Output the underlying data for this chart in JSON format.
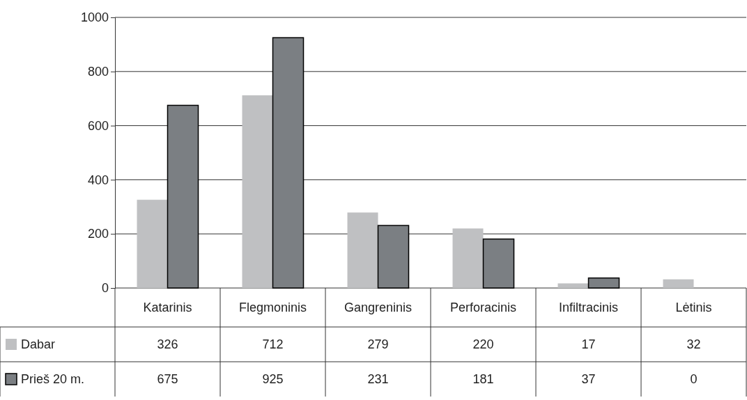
{
  "chart_data": {
    "type": "bar",
    "categories": [
      "Katarinis",
      "Flegmoninis",
      "Gangreninis",
      "Perforacinis",
      "Infiltracinis",
      "Lėtinis"
    ],
    "series": [
      {
        "name": "Dabar",
        "color": "#bfc0c2",
        "values": [
          326,
          712,
          279,
          220,
          17,
          32
        ]
      },
      {
        "name": "Prieš 20 m.",
        "color": "#7b7f83",
        "values": [
          675,
          925,
          231,
          181,
          37,
          0
        ]
      }
    ],
    "ylim": [
      0,
      1000
    ],
    "yticks": [
      0,
      200,
      400,
      600,
      800,
      1000
    ],
    "grid": "y",
    "legend": "bottom",
    "data_labels": true
  }
}
